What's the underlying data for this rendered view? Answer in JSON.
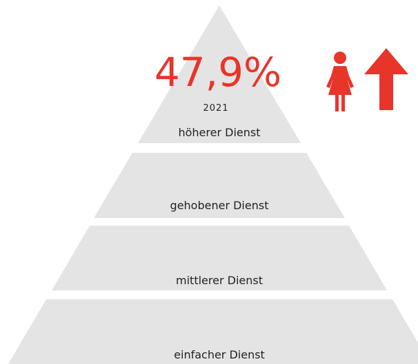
{
  "stat": {
    "value": "47,9%",
    "year": "2021"
  },
  "levels": [
    {
      "label": "höherer Dienst"
    },
    {
      "label": "gehobener Dienst"
    },
    {
      "label": "mittlerer Dienst"
    },
    {
      "label": "einfacher Dienst"
    }
  ]
}
